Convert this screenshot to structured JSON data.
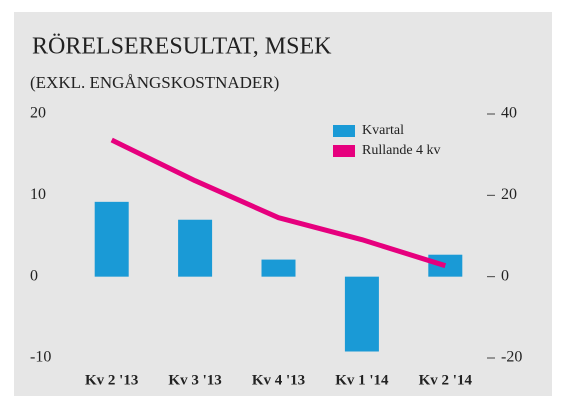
{
  "chart_data": {
    "type": "bar",
    "title": "RÖRELSERESULTAT, MSEK",
    "subtitle": "(EXKL. ENGÅNGSKOSTNADER)",
    "categories": [
      "Kv 2 '13",
      "Kv 3 '13",
      "Kv 4 '13",
      "Kv 1 '14",
      "Kv 2 '14"
    ],
    "series": [
      {
        "name": "Kvartal",
        "type": "bar",
        "color": "#1a9ad6",
        "values": [
          9.2,
          7.0,
          2.1,
          -9.2,
          2.7
        ]
      },
      {
        "name": "Rullande 4 kv",
        "type": "line",
        "axis": "y2",
        "color": "#e6007e",
        "values": [
          33.6,
          23.6,
          14.5,
          9.1,
          2.7
        ]
      }
    ],
    "ylim": [
      -10,
      20
    ],
    "yticks": [
      -10,
      0,
      10,
      20
    ],
    "y2lim": [
      -20,
      40
    ],
    "y2ticks": [
      -20,
      0,
      20,
      40
    ],
    "legend": "top-right"
  }
}
